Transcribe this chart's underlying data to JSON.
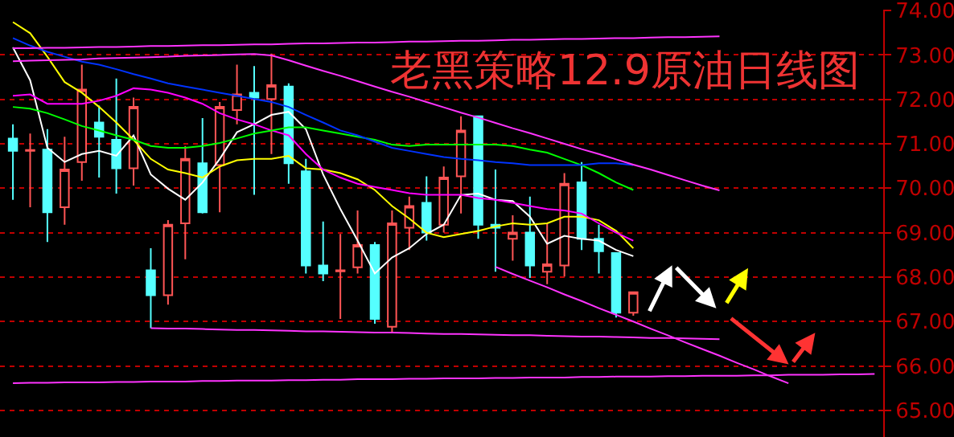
{
  "chart_data": {
    "type": "candlestick",
    "title": "老黑策略12.9原油日线图",
    "categories": [
      null,
      null,
      null,
      null,
      null,
      null,
      null,
      null,
      null,
      null,
      null,
      null,
      null,
      null,
      null,
      null,
      null,
      null,
      null,
      null,
      null,
      null,
      null,
      null,
      null,
      null,
      null,
      null,
      null,
      null,
      null,
      null,
      null,
      null,
      null,
      null,
      null,
      null,
      null,
      null,
      null,
      null,
      null,
      null,
      null,
      null,
      null,
      null,
      null,
      null,
      null
    ],
    "ohlc": [
      [
        71.12,
        71.44,
        69.74,
        70.84
      ],
      [
        70.84,
        71.23,
        69.57,
        70.86
      ],
      [
        70.87,
        71.33,
        68.79,
        69.46
      ],
      [
        69.57,
        71.16,
        69.18,
        70.42
      ],
      [
        70.59,
        72.78,
        70.17,
        72.22
      ],
      [
        71.48,
        71.86,
        70.24,
        71.16
      ],
      [
        71.09,
        72.47,
        69.88,
        70.45
      ],
      [
        70.45,
        72.04,
        70.06,
        71.83
      ],
      [
        68.15,
        68.65,
        66.85,
        67.59
      ],
      [
        67.59,
        69.28,
        67.38,
        69.18
      ],
      [
        69.21,
        70.95,
        68.4,
        70.66
      ],
      [
        70.56,
        71.58,
        69.43,
        69.46
      ],
      [
        70.52,
        71.94,
        69.46,
        71.83
      ],
      [
        71.76,
        72.78,
        71.44,
        72.11
      ],
      [
        72.15,
        72.75,
        69.85,
        72.04
      ],
      [
        72.01,
        73.03,
        70.77,
        72.32
      ],
      [
        72.29,
        72.36,
        70.1,
        70.56
      ],
      [
        70.38,
        70.66,
        68.08,
        68.26
      ],
      [
        68.26,
        69.25,
        67.91,
        68.08
      ],
      [
        68.13,
        68.97,
        67.06,
        68.15
      ],
      [
        68.22,
        69.5,
        68.08,
        68.72
      ],
      [
        68.72,
        68.79,
        66.95,
        67.06
      ],
      [
        66.88,
        69.5,
        66.74,
        69.21
      ],
      [
        69.11,
        69.81,
        68.61,
        69.6
      ],
      [
        69.67,
        70.27,
        68.82,
        69.0
      ],
      [
        69.18,
        70.49,
        69.0,
        70.24
      ],
      [
        70.27,
        71.62,
        69.43,
        71.3
      ],
      [
        71.62,
        71.62,
        68.86,
        69.18
      ],
      [
        69.18,
        70.42,
        68.12,
        69.11
      ],
      [
        68.86,
        69.39,
        68.37,
        69.0
      ],
      [
        69.0,
        69.81,
        67.98,
        68.26
      ],
      [
        68.12,
        69.21,
        67.84,
        68.29
      ],
      [
        68.26,
        70.34,
        68.01,
        70.1
      ],
      [
        70.13,
        70.59,
        68.61,
        68.86
      ],
      [
        68.86,
        69.18,
        68.08,
        68.58
      ],
      [
        68.54,
        68.54,
        67.09,
        67.2
      ],
      [
        67.2,
        67.66,
        67.13,
        67.66
      ],
      null,
      null,
      null,
      null,
      null,
      null,
      null,
      null,
      null,
      null,
      null,
      null,
      null,
      null
    ],
    "colors": [
      "#55ffff",
      "#ff5555",
      "#55ffff",
      "#ff5555",
      "#ff5555",
      "#55ffff",
      "#55ffff",
      "#ff5555",
      "#55ffff",
      "#ff5555",
      "#ff5555",
      "#55ffff",
      "#ff5555",
      "#ff5555",
      "#55ffff",
      "#ff5555",
      "#55ffff",
      "#55ffff",
      "#55ffff",
      "#ff5555",
      "#ff5555",
      "#55ffff",
      "#ff5555",
      "#ff5555",
      "#55ffff",
      "#ff5555",
      "#ff5555",
      "#55ffff",
      "#55ffff",
      "#ff5555",
      "#55ffff",
      "#ff5555",
      "#ff5555",
      "#55ffff",
      "#55ffff",
      "#55ffff",
      "#ff5555",
      null,
      null,
      null,
      null,
      null,
      null,
      null,
      null,
      null,
      null,
      null,
      null,
      null,
      null
    ],
    "series": [
      {
        "type": "line",
        "color": "#ffffff",
        "values": [
          73.17,
          72.43,
          70.91,
          70.59,
          70.77,
          70.84,
          70.73,
          71.19,
          70.31,
          69.99,
          69.74,
          70.13,
          70.66,
          71.26,
          71.44,
          71.65,
          71.72,
          71.33,
          70.31,
          69.53,
          68.82,
          68.08,
          68.44,
          68.65,
          68.97,
          69.18,
          69.85,
          69.88,
          69.74,
          69.71,
          69.36,
          68.75,
          68.93,
          68.86,
          68.82,
          68.61,
          68.47,
          null,
          null,
          null,
          null,
          null,
          null,
          null,
          null,
          null,
          null,
          null,
          null,
          null,
          null
        ]
      },
      {
        "type": "line",
        "color": "#ffff00",
        "values": [
          73.74,
          73.49,
          72.96,
          72.39,
          72.15,
          71.83,
          71.48,
          71.09,
          70.66,
          70.42,
          70.34,
          70.24,
          70.49,
          70.63,
          70.66,
          70.66,
          70.73,
          70.45,
          70.42,
          70.34,
          70.2,
          69.96,
          69.6,
          69.32,
          69.0,
          68.9,
          68.97,
          69.04,
          69.14,
          69.21,
          69.18,
          69.21,
          69.36,
          69.36,
          69.28,
          69.04,
          68.65,
          null,
          null,
          null,
          null,
          null,
          null,
          null,
          null,
          null,
          null,
          null,
          null,
          null,
          null
        ]
      },
      {
        "type": "line",
        "color": "#ff00ff",
        "values": [
          72.08,
          72.11,
          71.9,
          71.9,
          71.9,
          71.97,
          72.08,
          72.25,
          72.22,
          72.15,
          72.04,
          71.9,
          71.69,
          71.55,
          71.44,
          71.3,
          71.19,
          70.77,
          70.42,
          70.24,
          70.1,
          70.03,
          69.96,
          69.89,
          69.85,
          69.85,
          69.85,
          69.78,
          69.74,
          69.67,
          69.6,
          69.53,
          69.5,
          69.43,
          69.21,
          69.0,
          68.82,
          null,
          null,
          null,
          null,
          null,
          null,
          null,
          null,
          null,
          null,
          null,
          null,
          null,
          null
        ]
      },
      {
        "type": "line",
        "color": "#00ff00",
        "values": [
          71.83,
          71.79,
          71.69,
          71.55,
          71.4,
          71.3,
          71.19,
          71.09,
          70.95,
          70.91,
          70.91,
          70.95,
          71.02,
          71.12,
          71.23,
          71.3,
          71.37,
          71.37,
          71.3,
          71.23,
          71.16,
          71.09,
          70.98,
          70.95,
          70.98,
          70.98,
          70.98,
          70.98,
          70.98,
          70.95,
          70.87,
          70.8,
          70.66,
          70.52,
          70.34,
          70.13,
          69.96,
          null,
          null,
          null,
          null,
          null,
          null,
          null,
          null,
          null,
          null,
          null,
          null,
          null,
          null
        ]
      },
      {
        "type": "line",
        "color": "#0033ff",
        "values": [
          73.38,
          73.21,
          73.07,
          72.96,
          72.85,
          72.78,
          72.68,
          72.57,
          72.47,
          72.36,
          72.29,
          72.22,
          72.15,
          72.08,
          72.01,
          71.94,
          71.83,
          71.65,
          71.48,
          71.3,
          71.19,
          71.05,
          70.91,
          70.84,
          70.77,
          70.7,
          70.66,
          70.63,
          70.59,
          70.56,
          70.52,
          70.52,
          70.52,
          70.52,
          70.56,
          70.56,
          70.52,
          null,
          null,
          null,
          null,
          null,
          null,
          null,
          null,
          null,
          null,
          null,
          null,
          null,
          null
        ]
      },
      {
        "type": "line",
        "color": "#ff33ff",
        "values": [
          73.15,
          73.15,
          73.16,
          73.16,
          73.17,
          73.18,
          73.18,
          73.19,
          73.2,
          73.2,
          73.21,
          73.22,
          73.22,
          73.23,
          73.24,
          73.24,
          73.25,
          73.26,
          73.26,
          73.27,
          73.28,
          73.28,
          73.29,
          73.3,
          73.3,
          73.31,
          73.32,
          73.32,
          73.33,
          73.34,
          73.34,
          73.35,
          73.36,
          73.36,
          73.37,
          73.38,
          73.38,
          73.39,
          73.4,
          73.4,
          73.41,
          73.42,
          null,
          null,
          null,
          null,
          null,
          null,
          null,
          null,
          null
        ]
      },
      {
        "type": "line",
        "color": "#ff33ff",
        "values": [
          72.86,
          72.87,
          72.88,
          72.89,
          72.9,
          72.92,
          72.93,
          72.94,
          72.95,
          72.96,
          72.98,
          72.99,
          73.0,
          73.01,
          73.02,
          72.99,
          72.88,
          72.76,
          72.64,
          72.53,
          72.41,
          72.29,
          72.17,
          72.06,
          71.94,
          71.82,
          71.7,
          71.59,
          71.47,
          71.35,
          71.24,
          71.12,
          71.0,
          70.88,
          70.77,
          70.65,
          70.53,
          70.42,
          70.3,
          70.18,
          70.06,
          69.95,
          null,
          null,
          null,
          null,
          null,
          null,
          null,
          null,
          null
        ]
      },
      {
        "type": "line",
        "color": "#ff33ff",
        "values": [
          null,
          null,
          null,
          null,
          null,
          null,
          null,
          null,
          null,
          null,
          null,
          null,
          null,
          null,
          null,
          null,
          null,
          null,
          null,
          null,
          null,
          null,
          null,
          null,
          null,
          null,
          null,
          null,
          68.23,
          68.07,
          67.92,
          67.77,
          67.61,
          67.46,
          67.3,
          67.15,
          67.0,
          66.84,
          66.69,
          66.53,
          66.38,
          66.23,
          66.07,
          65.92,
          65.76,
          65.61,
          null,
          null,
          null,
          null,
          null
        ]
      },
      {
        "type": "line",
        "color": "#ff33ff",
        "values": [
          null,
          null,
          null,
          null,
          null,
          null,
          null,
          null,
          66.85,
          66.84,
          66.84,
          66.83,
          66.82,
          66.81,
          66.81,
          66.8,
          66.79,
          66.78,
          66.78,
          66.77,
          66.76,
          66.75,
          66.75,
          66.74,
          66.73,
          66.72,
          66.72,
          66.71,
          66.7,
          66.69,
          66.69,
          66.68,
          66.67,
          66.66,
          66.66,
          66.65,
          66.64,
          66.63,
          66.63,
          66.62,
          66.61,
          66.6,
          null,
          null,
          null,
          null,
          null,
          null,
          null,
          null,
          null
        ]
      },
      {
        "type": "line",
        "color": "#ff33ff",
        "values": [
          65.61,
          65.62,
          65.62,
          65.63,
          65.63,
          65.63,
          65.64,
          65.64,
          65.65,
          65.65,
          65.65,
          65.66,
          65.66,
          65.67,
          65.67,
          65.67,
          65.68,
          65.68,
          65.69,
          65.69,
          65.7,
          65.7,
          65.7,
          65.71,
          65.71,
          65.72,
          65.72,
          65.72,
          65.73,
          65.73,
          65.74,
          65.74,
          65.74,
          65.75,
          65.75,
          65.76,
          65.76,
          65.76,
          65.77,
          65.77,
          65.78,
          65.78,
          65.78,
          65.79,
          65.79,
          65.8,
          65.8,
          65.8,
          65.81,
          65.81,
          65.82
        ]
      }
    ],
    "ylim": [
      64.4,
      74.02
    ],
    "yticks": [
      {
        "value": 65,
        "label": "65.00"
      },
      {
        "value": 66,
        "label": "66.00"
      },
      {
        "value": 67,
        "label": "67.00"
      },
      {
        "value": 68,
        "label": "68.00"
      },
      {
        "value": 69,
        "label": "69.00"
      },
      {
        "value": 70,
        "label": "70.00"
      },
      {
        "value": 71,
        "label": "71.00"
      },
      {
        "value": 72,
        "label": "72.00"
      },
      {
        "value": 73,
        "label": "73.00"
      },
      {
        "value": 74,
        "label": "74.00"
      }
    ],
    "tick_labels": "y",
    "grid": "y",
    "legend": false,
    "line_style": "solid",
    "marker": "none"
  }
}
